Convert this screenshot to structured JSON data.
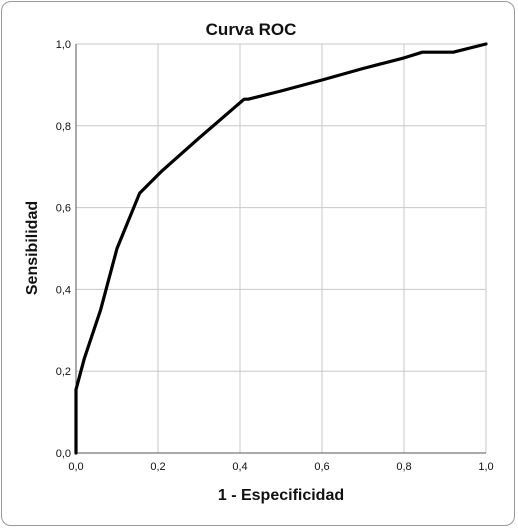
{
  "chart_data": {
    "type": "line",
    "title": "Curva ROC",
    "xlabel": "1 - Especificidad",
    "ylabel": "Sensibilidad",
    "xlim": [
      0,
      1
    ],
    "ylim": [
      0,
      1
    ],
    "grid": true,
    "x_ticks": [
      "0,0",
      "0,2",
      "0,4",
      "0,6",
      "0,8",
      "1,0"
    ],
    "y_ticks": [
      "0,0",
      "0,2",
      "0,4",
      "0,6",
      "0,8",
      "1,0"
    ],
    "series": [
      {
        "color": "#000000",
        "x": [
          0.0,
          0.0,
          0.02,
          0.06,
          0.1,
          0.155,
          0.21,
          0.3,
          0.41,
          0.42,
          0.5,
          0.6,
          0.7,
          0.8,
          0.845,
          0.92,
          1.0
        ],
        "y": [
          0.0,
          0.155,
          0.23,
          0.35,
          0.5,
          0.635,
          0.69,
          0.77,
          0.865,
          0.865,
          0.885,
          0.912,
          0.94,
          0.966,
          0.98,
          0.98,
          1.0
        ]
      }
    ]
  }
}
